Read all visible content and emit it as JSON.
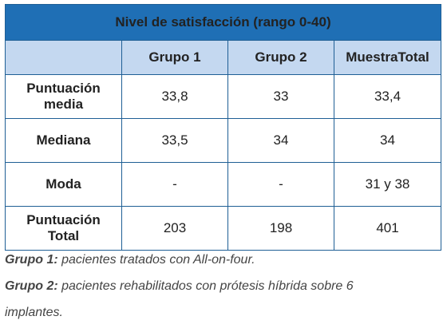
{
  "table": {
    "title": "Nivel de satisfacción (rango 0-40)",
    "headers": [
      "",
      "Grupo 1",
      "Grupo 2",
      "MuestraTotal"
    ],
    "rows": [
      {
        "label_line1": "Puntuación",
        "label_line2": "media",
        "values": [
          "33,8",
          "33",
          "33,4"
        ]
      },
      {
        "label_line1": "Mediana",
        "label_line2": "",
        "values": [
          "33,5",
          "34",
          "34"
        ]
      },
      {
        "label_line1": "Moda",
        "label_line2": "",
        "values": [
          "-",
          "-",
          "31 y 38"
        ]
      },
      {
        "label_line1": "Puntuación",
        "label_line2": "Total",
        "values": [
          "203",
          "198",
          "401"
        ]
      }
    ]
  },
  "notes": [
    {
      "term": "Grupo 1:",
      "text": " pacientes tratados con All-on-four."
    },
    {
      "term": "Grupo 2:",
      "text": " pacientes rehabilitados con prótesis híbrida sobre 6",
      "text_line2": "implantes."
    }
  ]
}
